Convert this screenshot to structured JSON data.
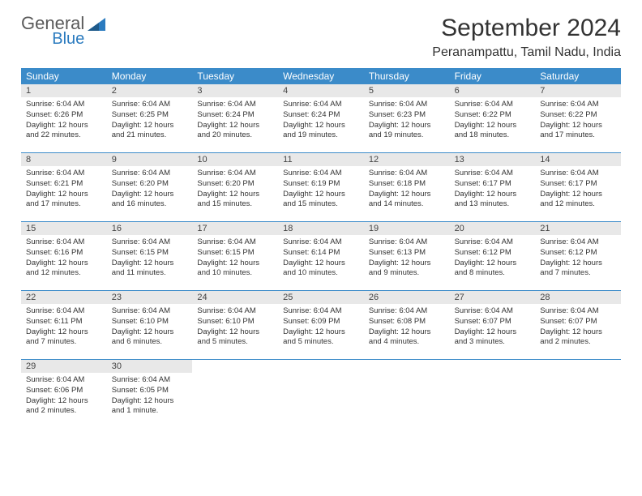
{
  "logo": {
    "text1": "General",
    "text2": "Blue"
  },
  "title": "September 2024",
  "location": "Peranampattu, Tamil Nadu, India",
  "colors": {
    "header_bg": "#3b8bc9",
    "header_text": "#ffffff",
    "daynum_bg": "#e8e8e8",
    "week_border": "#3b8bc9",
    "logo_gray": "#5a5a5a",
    "logo_blue": "#2b7bbf"
  },
  "dayNames": [
    "Sunday",
    "Monday",
    "Tuesday",
    "Wednesday",
    "Thursday",
    "Friday",
    "Saturday"
  ],
  "weeks": [
    [
      {
        "n": "1",
        "sunrise": "Sunrise: 6:04 AM",
        "sunset": "Sunset: 6:26 PM",
        "day1": "Daylight: 12 hours",
        "day2": "and 22 minutes."
      },
      {
        "n": "2",
        "sunrise": "Sunrise: 6:04 AM",
        "sunset": "Sunset: 6:25 PM",
        "day1": "Daylight: 12 hours",
        "day2": "and 21 minutes."
      },
      {
        "n": "3",
        "sunrise": "Sunrise: 6:04 AM",
        "sunset": "Sunset: 6:24 PM",
        "day1": "Daylight: 12 hours",
        "day2": "and 20 minutes."
      },
      {
        "n": "4",
        "sunrise": "Sunrise: 6:04 AM",
        "sunset": "Sunset: 6:24 PM",
        "day1": "Daylight: 12 hours",
        "day2": "and 19 minutes."
      },
      {
        "n": "5",
        "sunrise": "Sunrise: 6:04 AM",
        "sunset": "Sunset: 6:23 PM",
        "day1": "Daylight: 12 hours",
        "day2": "and 19 minutes."
      },
      {
        "n": "6",
        "sunrise": "Sunrise: 6:04 AM",
        "sunset": "Sunset: 6:22 PM",
        "day1": "Daylight: 12 hours",
        "day2": "and 18 minutes."
      },
      {
        "n": "7",
        "sunrise": "Sunrise: 6:04 AM",
        "sunset": "Sunset: 6:22 PM",
        "day1": "Daylight: 12 hours",
        "day2": "and 17 minutes."
      }
    ],
    [
      {
        "n": "8",
        "sunrise": "Sunrise: 6:04 AM",
        "sunset": "Sunset: 6:21 PM",
        "day1": "Daylight: 12 hours",
        "day2": "and 17 minutes."
      },
      {
        "n": "9",
        "sunrise": "Sunrise: 6:04 AM",
        "sunset": "Sunset: 6:20 PM",
        "day1": "Daylight: 12 hours",
        "day2": "and 16 minutes."
      },
      {
        "n": "10",
        "sunrise": "Sunrise: 6:04 AM",
        "sunset": "Sunset: 6:20 PM",
        "day1": "Daylight: 12 hours",
        "day2": "and 15 minutes."
      },
      {
        "n": "11",
        "sunrise": "Sunrise: 6:04 AM",
        "sunset": "Sunset: 6:19 PM",
        "day1": "Daylight: 12 hours",
        "day2": "and 15 minutes."
      },
      {
        "n": "12",
        "sunrise": "Sunrise: 6:04 AM",
        "sunset": "Sunset: 6:18 PM",
        "day1": "Daylight: 12 hours",
        "day2": "and 14 minutes."
      },
      {
        "n": "13",
        "sunrise": "Sunrise: 6:04 AM",
        "sunset": "Sunset: 6:17 PM",
        "day1": "Daylight: 12 hours",
        "day2": "and 13 minutes."
      },
      {
        "n": "14",
        "sunrise": "Sunrise: 6:04 AM",
        "sunset": "Sunset: 6:17 PM",
        "day1": "Daylight: 12 hours",
        "day2": "and 12 minutes."
      }
    ],
    [
      {
        "n": "15",
        "sunrise": "Sunrise: 6:04 AM",
        "sunset": "Sunset: 6:16 PM",
        "day1": "Daylight: 12 hours",
        "day2": "and 12 minutes."
      },
      {
        "n": "16",
        "sunrise": "Sunrise: 6:04 AM",
        "sunset": "Sunset: 6:15 PM",
        "day1": "Daylight: 12 hours",
        "day2": "and 11 minutes."
      },
      {
        "n": "17",
        "sunrise": "Sunrise: 6:04 AM",
        "sunset": "Sunset: 6:15 PM",
        "day1": "Daylight: 12 hours",
        "day2": "and 10 minutes."
      },
      {
        "n": "18",
        "sunrise": "Sunrise: 6:04 AM",
        "sunset": "Sunset: 6:14 PM",
        "day1": "Daylight: 12 hours",
        "day2": "and 10 minutes."
      },
      {
        "n": "19",
        "sunrise": "Sunrise: 6:04 AM",
        "sunset": "Sunset: 6:13 PM",
        "day1": "Daylight: 12 hours",
        "day2": "and 9 minutes."
      },
      {
        "n": "20",
        "sunrise": "Sunrise: 6:04 AM",
        "sunset": "Sunset: 6:12 PM",
        "day1": "Daylight: 12 hours",
        "day2": "and 8 minutes."
      },
      {
        "n": "21",
        "sunrise": "Sunrise: 6:04 AM",
        "sunset": "Sunset: 6:12 PM",
        "day1": "Daylight: 12 hours",
        "day2": "and 7 minutes."
      }
    ],
    [
      {
        "n": "22",
        "sunrise": "Sunrise: 6:04 AM",
        "sunset": "Sunset: 6:11 PM",
        "day1": "Daylight: 12 hours",
        "day2": "and 7 minutes."
      },
      {
        "n": "23",
        "sunrise": "Sunrise: 6:04 AM",
        "sunset": "Sunset: 6:10 PM",
        "day1": "Daylight: 12 hours",
        "day2": "and 6 minutes."
      },
      {
        "n": "24",
        "sunrise": "Sunrise: 6:04 AM",
        "sunset": "Sunset: 6:10 PM",
        "day1": "Daylight: 12 hours",
        "day2": "and 5 minutes."
      },
      {
        "n": "25",
        "sunrise": "Sunrise: 6:04 AM",
        "sunset": "Sunset: 6:09 PM",
        "day1": "Daylight: 12 hours",
        "day2": "and 5 minutes."
      },
      {
        "n": "26",
        "sunrise": "Sunrise: 6:04 AM",
        "sunset": "Sunset: 6:08 PM",
        "day1": "Daylight: 12 hours",
        "day2": "and 4 minutes."
      },
      {
        "n": "27",
        "sunrise": "Sunrise: 6:04 AM",
        "sunset": "Sunset: 6:07 PM",
        "day1": "Daylight: 12 hours",
        "day2": "and 3 minutes."
      },
      {
        "n": "28",
        "sunrise": "Sunrise: 6:04 AM",
        "sunset": "Sunset: 6:07 PM",
        "day1": "Daylight: 12 hours",
        "day2": "and 2 minutes."
      }
    ],
    [
      {
        "n": "29",
        "sunrise": "Sunrise: 6:04 AM",
        "sunset": "Sunset: 6:06 PM",
        "day1": "Daylight: 12 hours",
        "day2": "and 2 minutes."
      },
      {
        "n": "30",
        "sunrise": "Sunrise: 6:04 AM",
        "sunset": "Sunset: 6:05 PM",
        "day1": "Daylight: 12 hours",
        "day2": "and 1 minute."
      },
      null,
      null,
      null,
      null,
      null
    ]
  ]
}
